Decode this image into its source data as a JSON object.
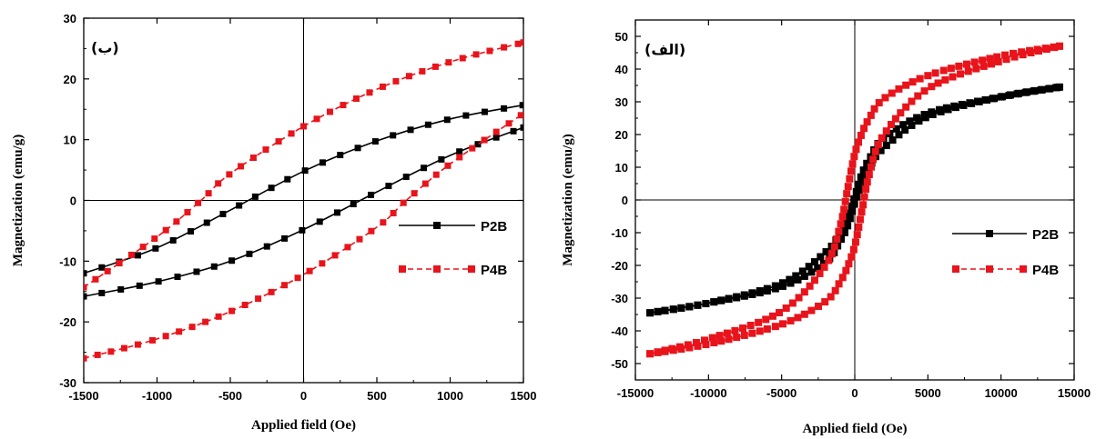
{
  "chart_data": [
    {
      "type": "line",
      "panel_label": "(ب)",
      "xlabel": "Applied field (Oe)",
      "ylabel": "Magnetization (emu/g)",
      "xlim": [
        -1500,
        1500
      ],
      "ylim": [
        -30,
        30
      ],
      "xticks": [
        -1500,
        -1000,
        -500,
        0,
        500,
        1000,
        1500
      ],
      "yticks": [
        -30,
        -20,
        -10,
        0,
        10,
        20,
        30
      ],
      "x_tick_labels": [
        "-1500",
        "-1000",
        "-500",
        "0",
        "500",
        "1000",
        "1500"
      ],
      "y_tick_labels": [
        "-30",
        "-20",
        "-10",
        "0",
        "10",
        "20",
        "30"
      ],
      "legend_position": "right",
      "grid": false,
      "series": [
        {
          "name": "P2B",
          "color": "#000000",
          "style": "solid",
          "marker": "square",
          "upper_branch": {
            "x": [
              -1500,
              -1000,
              -500,
              0,
              500,
              1000,
              1500
            ],
            "y": [
              -12.0,
              -7.8,
              -1.6,
              4.8,
              9.8,
              13.4,
              15.7
            ]
          },
          "lower_branch": {
            "x": [
              -1500,
              -1000,
              -500,
              0,
              500,
              1000,
              1500
            ],
            "y": [
              -15.8,
              -13.4,
              -10.0,
              -4.8,
              1.4,
              7.4,
              12.0
            ]
          }
        },
        {
          "name": "P4B",
          "color": "#e8141b",
          "style": "dashed",
          "marker": "square",
          "upper_branch": {
            "x": [
              -1500,
              -1000,
              -700,
              -500,
              0,
              500,
              1000,
              1500
            ],
            "y": [
              -14.3,
              -6.0,
              0.0,
              4.4,
              12.2,
              18.3,
              22.8,
              26.0
            ]
          },
          "lower_branch": {
            "x": [
              -1500,
              -1000,
              -500,
              0,
              500,
              700,
              1000,
              1500
            ],
            "y": [
              -26.0,
              -22.8,
              -18.3,
              -12.2,
              -4.4,
              0.0,
              6.0,
              14.3
            ]
          }
        }
      ]
    },
    {
      "type": "line",
      "panel_label": "(الف)",
      "xlabel": "Applied field (Oe)",
      "ylabel": "Magnetization (emu/g)",
      "xlim": [
        -15000,
        15000
      ],
      "ylim": [
        -55,
        55
      ],
      "xticks": [
        -15000,
        -10000,
        -5000,
        0,
        5000,
        10000,
        15000
      ],
      "yticks": [
        -50,
        -40,
        -30,
        -20,
        -10,
        0,
        10,
        20,
        30,
        40,
        50
      ],
      "x_tick_labels": [
        "-15000",
        "-10000",
        "-5000",
        "0",
        "5000",
        "10000",
        "15000"
      ],
      "y_tick_labels": [
        "-50",
        "-40",
        "-30",
        "-20",
        "-10",
        "0",
        "10",
        "20",
        "30",
        "40",
        "50"
      ],
      "legend_position": "right",
      "grid": false,
      "series": [
        {
          "name": "P2B",
          "color": "#000000",
          "style": "solid",
          "marker": "square",
          "upper_branch": {
            "x": [
              -14000,
              -10000,
              -5000,
              -2000,
              -1000,
              -500,
              0,
              500,
              1000,
              2000,
              5000,
              10000,
              14000
            ],
            "y": [
              -34.5,
              -31.5,
              -25.5,
              -16.0,
              -10.0,
              -5.5,
              1.0,
              8.0,
              12.5,
              19.0,
              26.5,
              31.5,
              34.5
            ]
          },
          "lower_branch": {
            "x": [
              -14000,
              -10000,
              -5000,
              -2000,
              -1000,
              -500,
              0,
              500,
              1000,
              2000,
              5000,
              10000,
              14000
            ],
            "y": [
              -34.5,
              -31.5,
              -26.5,
              -19.0,
              -12.5,
              -8.0,
              -1.0,
              5.5,
              10.0,
              16.0,
              25.5,
              31.5,
              34.5
            ]
          }
        },
        {
          "name": "P4B",
          "color": "#e8141b",
          "style": "dashed",
          "marker": "square",
          "upper_branch": {
            "x": [
              -14000,
              -10000,
              -5000,
              -2000,
              -1000,
              -500,
              0,
              500,
              1000,
              2000,
              5000,
              10000,
              14000
            ],
            "y": [
              -47.0,
              -42.5,
              -34.0,
              -20.0,
              -8.0,
              3.0,
              14.0,
              20.5,
              25.0,
              31.0,
              38.0,
              44.0,
              47.0
            ]
          },
          "lower_branch": {
            "x": [
              -14000,
              -10000,
              -5000,
              -2000,
              -1000,
              -500,
              0,
              500,
              1000,
              2000,
              5000,
              10000,
              14000
            ],
            "y": [
              -47.0,
              -44.0,
              -38.0,
              -31.0,
              -25.0,
              -20.5,
              -14.0,
              -3.0,
              8.0,
              20.0,
              34.0,
              42.5,
              47.0
            ]
          }
        }
      ]
    }
  ]
}
